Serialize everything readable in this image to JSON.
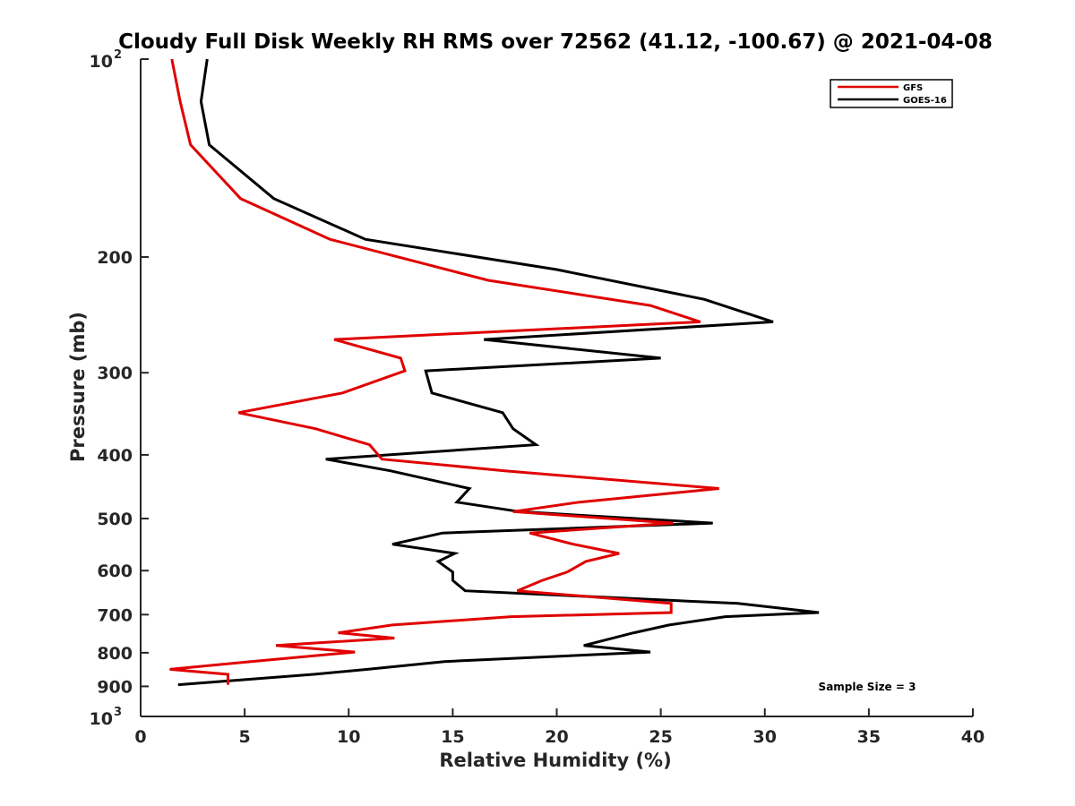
{
  "chart_data": {
    "type": "line",
    "title": "Cloudy Full Disk Weekly RH RMS over 72562 (41.12, -100.67) @ 2021-04-08",
    "xlabel": "Relative Humidity (%)",
    "ylabel": "Pressure (mb)",
    "xlim": [
      0,
      40
    ],
    "ylim": [
      100,
      1000
    ],
    "y_scale": "log",
    "y_reversed": true,
    "xticks": [
      "0",
      "5",
      "10",
      "15",
      "20",
      "25",
      "30",
      "35",
      "40"
    ],
    "yticks": [
      {
        "value": 100,
        "base": "10",
        "exp": "2"
      },
      {
        "value": 200,
        "label": "200"
      },
      {
        "value": 300,
        "label": "300"
      },
      {
        "value": 400,
        "label": "400"
      },
      {
        "value": 500,
        "label": "500"
      },
      {
        "value": 600,
        "label": "600"
      },
      {
        "value": 700,
        "label": "700"
      },
      {
        "value": 800,
        "label": "800"
      },
      {
        "value": 900,
        "label": "900"
      },
      {
        "value": 1000,
        "base": "10",
        "exp": "3"
      }
    ],
    "legend_position": "top-right",
    "annotation": "Sample Size = 3",
    "series": [
      {
        "name": "GFS",
        "color": "#e00000",
        "points": [
          [
            1.5,
            100
          ],
          [
            1.9,
            116
          ],
          [
            2.4,
            135
          ],
          [
            4.8,
            163
          ],
          [
            9.1,
            188
          ],
          [
            16.7,
            217
          ],
          [
            24.5,
            237
          ],
          [
            26.9,
            251
          ],
          [
            9.3,
            267
          ],
          [
            12.5,
            285
          ],
          [
            12.7,
            298
          ],
          [
            9.7,
            322
          ],
          [
            4.7,
            345
          ],
          [
            8.4,
            365
          ],
          [
            11.0,
            386
          ],
          [
            11.6,
            406
          ],
          [
            17.5,
            423
          ],
          [
            27.8,
            450
          ],
          [
            21.1,
            472
          ],
          [
            17.9,
            488
          ],
          [
            25.6,
            508
          ],
          [
            18.7,
            526
          ],
          [
            20.8,
            547
          ],
          [
            23.0,
            565
          ],
          [
            21.4,
            581
          ],
          [
            20.5,
            603
          ],
          [
            19.3,
            621
          ],
          [
            18.1,
            644
          ],
          [
            25.5,
            673
          ],
          [
            25.5,
            695
          ],
          [
            17.8,
            705
          ],
          [
            12.1,
            726
          ],
          [
            9.5,
            746
          ],
          [
            12.2,
            760
          ],
          [
            6.5,
            780
          ],
          [
            10.3,
            798
          ],
          [
            5.3,
            825
          ],
          [
            1.4,
            848
          ],
          [
            4.2,
            863
          ],
          [
            4.2,
            895
          ]
        ]
      },
      {
        "name": "GOES-16",
        "color": "#000000",
        "points": [
          [
            3.2,
            100
          ],
          [
            2.9,
            116
          ],
          [
            3.3,
            135
          ],
          [
            6.4,
            163
          ],
          [
            10.8,
            188
          ],
          [
            20.0,
            209
          ],
          [
            27.1,
            232
          ],
          [
            30.4,
            251
          ],
          [
            16.5,
            267
          ],
          [
            25.0,
            285
          ],
          [
            13.7,
            298
          ],
          [
            14.0,
            322
          ],
          [
            17.4,
            345
          ],
          [
            17.9,
            365
          ],
          [
            19.0,
            386
          ],
          [
            8.9,
            406
          ],
          [
            12.0,
            423
          ],
          [
            15.8,
            450
          ],
          [
            15.2,
            472
          ],
          [
            18.2,
            488
          ],
          [
            27.5,
            508
          ],
          [
            14.5,
            526
          ],
          [
            12.1,
            547
          ],
          [
            15.1,
            565
          ],
          [
            14.3,
            581
          ],
          [
            15.0,
            603
          ],
          [
            15.0,
            621
          ],
          [
            15.6,
            644
          ],
          [
            28.7,
            673
          ],
          [
            32.6,
            695
          ],
          [
            28.1,
            705
          ],
          [
            25.4,
            726
          ],
          [
            23.7,
            746
          ],
          [
            21.3,
            780
          ],
          [
            24.5,
            798
          ],
          [
            14.6,
            825
          ],
          [
            10.9,
            848
          ],
          [
            8.3,
            863
          ],
          [
            1.8,
            895
          ]
        ]
      }
    ]
  }
}
